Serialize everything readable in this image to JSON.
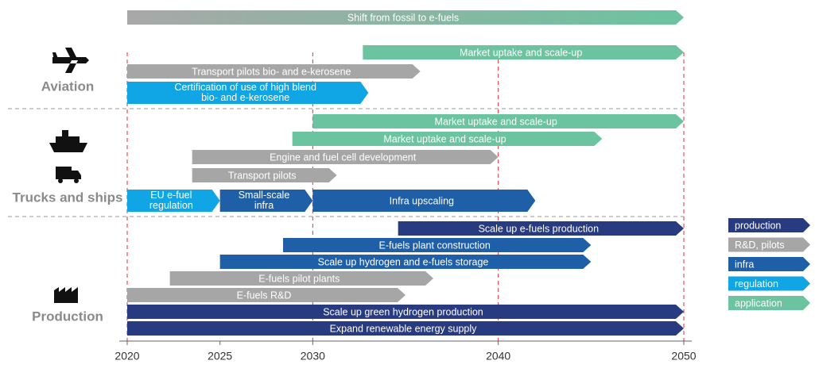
{
  "chart_data": {
    "type": "gantt",
    "xlim": [
      2020,
      2050
    ],
    "xticks": [
      2020,
      2025,
      2030,
      2040,
      2050
    ],
    "grid_lines": [
      2020,
      2030,
      2040,
      2050
    ],
    "sections": [
      "Aviation",
      "Trucks and ships",
      "Production"
    ],
    "groups": [
      {
        "name": "production",
        "color": "#283a80"
      },
      {
        "name": "R&D, pilots",
        "color": "#a6a6a6"
      },
      {
        "name": "infra",
        "color": "#1f5fa8"
      },
      {
        "name": "regulation",
        "color": "#10a5e4"
      },
      {
        "name": "application",
        "color": "#6cc39f"
      }
    ],
    "tasks": [
      {
        "label": "Shift from fossil to e-fuels",
        "start": 2020,
        "end": 2050,
        "color": [
          "#a8a8a8",
          "#6cc39f"
        ]
      },
      {
        "label": "Market uptake and scale-up",
        "start": 2032.7,
        "end": 2050,
        "group": "application"
      },
      {
        "label": "Transport pilots bio- and e-kerosene",
        "start": 2020,
        "end": 2035.8,
        "group": "R&D, pilots"
      },
      {
        "label": [
          "Certification of use of high blend",
          "bio- and e-kerosene"
        ],
        "start": 2020,
        "end": 2033,
        "group": "regulation"
      },
      {
        "label": "Market uptake and scale-up",
        "start": 2030,
        "end": 2050,
        "group": "application"
      },
      {
        "label": "Market uptake and scale-up",
        "start": 2028.9,
        "end": 2045.6,
        "group": "application"
      },
      {
        "label": "Engine and fuel cell development",
        "start": 2023.5,
        "end": 2040,
        "group": "R&D, pilots"
      },
      {
        "label": "Transport pilots",
        "start": 2023.5,
        "end": 2031.3,
        "group": "R&D, pilots"
      },
      {
        "label": [
          "EU e-fuel",
          "regulation"
        ],
        "start": 2020,
        "end": 2025,
        "group": "regulation"
      },
      {
        "label": [
          "Small-scale",
          "infra"
        ],
        "start": 2025,
        "end": 2030,
        "group": "infra"
      },
      {
        "label": "Infra upscaling",
        "start": 2030,
        "end": 2042,
        "group": "infra"
      },
      {
        "label": "Scale up e-fuels production",
        "start": 2034.6,
        "end": 2050,
        "group": "production"
      },
      {
        "label": "E-fuels plant construction",
        "start": 2028.4,
        "end": 2045,
        "group": "infra"
      },
      {
        "label": "Scale up hydrogen and e-fuels storage",
        "start": 2025,
        "end": 2045,
        "group": "infra"
      },
      {
        "label": "E-fuels pilot plants",
        "start": 2022.3,
        "end": 2036.5,
        "group": "R&D, pilots"
      },
      {
        "label": "E-fuels R&D",
        "start": 2020,
        "end": 2035,
        "group": "R&D, pilots"
      },
      {
        "label": "Scale up green hydrogen production",
        "start": 2020,
        "end": 2050,
        "group": "production"
      },
      {
        "label": "Expand renewable energy supply",
        "start": 2020,
        "end": 2050,
        "group": "production"
      }
    ]
  }
}
